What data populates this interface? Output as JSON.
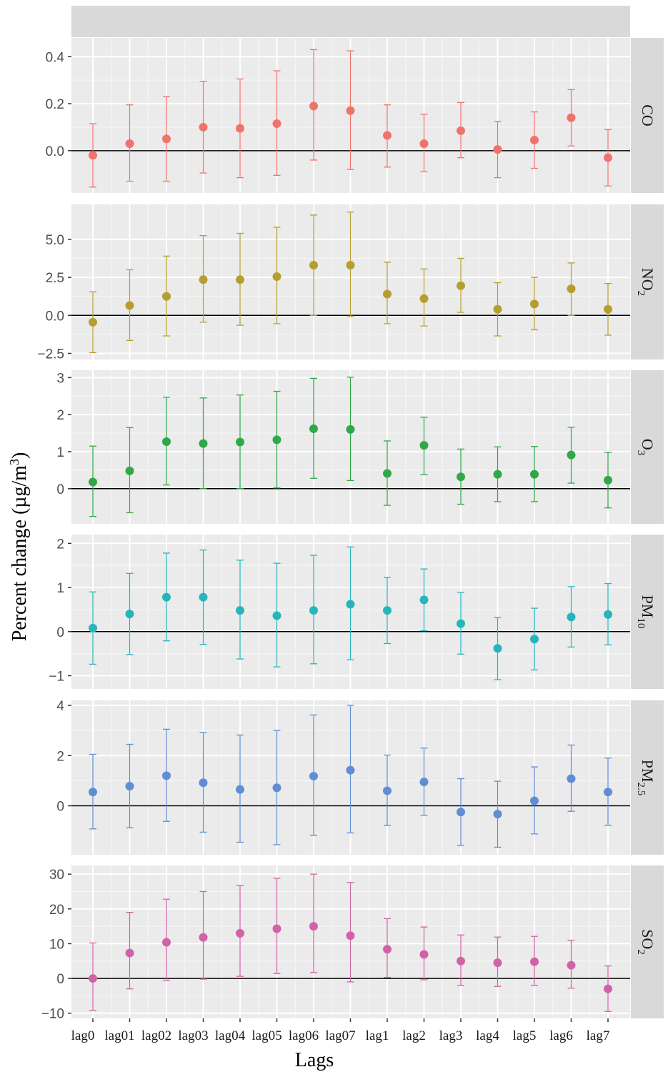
{
  "chart_data": {
    "type": "scatter",
    "subtype": "point-errorbar-faceted",
    "xlabel": "Lags",
    "ylabel": "Percent change (µg/m³)",
    "categories": [
      "lag0",
      "lag01",
      "lag02",
      "lag03",
      "lag04",
      "lag05",
      "lag06",
      "lag07",
      "lag1",
      "lag2",
      "lag3",
      "lag4",
      "lag5",
      "lag6",
      "lag7"
    ],
    "panels": [
      {
        "name": "CO",
        "label_main": "CO",
        "label_sub": "",
        "color": "#F0736B",
        "ylim": [
          -0.18,
          0.48
        ],
        "yticks": [
          0.0,
          0.2,
          0.4
        ],
        "ytick_labels": [
          "0.0",
          "0.2",
          "0.4"
        ],
        "estimate": [
          -0.02,
          0.03,
          0.05,
          0.1,
          0.095,
          0.115,
          0.19,
          0.17,
          0.065,
          0.03,
          0.085,
          0.005,
          0.045,
          0.14,
          -0.03
        ],
        "lower": [
          -0.155,
          -0.13,
          -0.13,
          -0.095,
          -0.115,
          -0.105,
          -0.04,
          -0.08,
          -0.07,
          -0.09,
          -0.03,
          -0.115,
          -0.075,
          0.02,
          -0.15
        ],
        "upper": [
          0.115,
          0.195,
          0.23,
          0.295,
          0.305,
          0.34,
          0.43,
          0.425,
          0.195,
          0.155,
          0.205,
          0.125,
          0.165,
          0.26,
          0.09
        ]
      },
      {
        "name": "NO2",
        "label_main": "NO",
        "label_sub": "2",
        "color": "#B59E2E",
        "ylim": [
          -2.9,
          7.3
        ],
        "yticks": [
          -2.5,
          0.0,
          2.5,
          5.0
        ],
        "ytick_labels": [
          "−2.5",
          "0.0",
          "2.5",
          "5.0"
        ],
        "estimate": [
          -0.45,
          0.65,
          1.25,
          2.35,
          2.35,
          2.55,
          3.3,
          3.3,
          1.4,
          1.1,
          1.95,
          0.4,
          0.75,
          1.75,
          0.4
        ],
        "lower": [
          -2.45,
          -1.65,
          -1.35,
          -0.45,
          -0.65,
          -0.55,
          0.0,
          -0.05,
          -0.55,
          -0.7,
          0.2,
          -1.35,
          -0.95,
          0.0,
          -1.3
        ],
        "upper": [
          1.55,
          3.0,
          3.9,
          5.25,
          5.4,
          5.8,
          6.6,
          6.8,
          3.5,
          3.05,
          3.75,
          2.15,
          2.5,
          3.45,
          2.1
        ]
      },
      {
        "name": "O3",
        "label_main": "O",
        "label_sub": "3",
        "color": "#30A849",
        "ylim": [
          -0.95,
          3.2
        ],
        "yticks": [
          0,
          1,
          2,
          3
        ],
        "ytick_labels": [
          "0",
          "1",
          "2",
          "3"
        ],
        "estimate": [
          0.18,
          0.48,
          1.27,
          1.22,
          1.26,
          1.32,
          1.62,
          1.6,
          0.41,
          1.17,
          0.32,
          0.39,
          0.39,
          0.91,
          0.23
        ],
        "lower": [
          -0.75,
          -0.65,
          0.1,
          0.0,
          0.0,
          0.02,
          0.28,
          0.22,
          -0.45,
          0.38,
          -0.42,
          -0.35,
          -0.35,
          0.15,
          -0.52
        ],
        "upper": [
          1.15,
          1.65,
          2.47,
          2.45,
          2.53,
          2.63,
          2.98,
          3.01,
          1.29,
          1.93,
          1.07,
          1.13,
          1.14,
          1.66,
          0.98
        ]
      },
      {
        "name": "PM10",
        "label_main": "PM",
        "label_sub": "10",
        "color": "#27B5BB",
        "ylim": [
          -1.3,
          2.2
        ],
        "yticks": [
          -1,
          0,
          1,
          2
        ],
        "ytick_labels": [
          "−1",
          "0",
          "1",
          "2"
        ],
        "estimate": [
          0.08,
          0.4,
          0.78,
          0.78,
          0.48,
          0.36,
          0.48,
          0.62,
          0.48,
          0.72,
          0.18,
          -0.38,
          -0.17,
          0.33,
          0.39
        ],
        "lower": [
          -0.74,
          -0.52,
          -0.21,
          -0.29,
          -0.62,
          -0.8,
          -0.73,
          -0.64,
          -0.27,
          0.02,
          -0.51,
          -1.09,
          -0.87,
          -0.35,
          -0.3
        ],
        "upper": [
          0.9,
          1.32,
          1.78,
          1.85,
          1.62,
          1.55,
          1.73,
          1.92,
          1.23,
          1.42,
          0.89,
          0.32,
          0.53,
          1.02,
          1.09
        ]
      },
      {
        "name": "PM2.5",
        "label_main": "PM",
        "label_sub": "2.5",
        "color": "#618DD3",
        "ylim": [
          -1.95,
          4.2
        ],
        "yticks": [
          0,
          2,
          4
        ],
        "ytick_labels": [
          "0",
          "2",
          "4"
        ],
        "estimate": [
          0.55,
          0.78,
          1.2,
          0.92,
          0.65,
          0.72,
          1.18,
          1.42,
          0.6,
          0.95,
          -0.25,
          -0.33,
          0.2,
          1.08,
          0.55
        ],
        "lower": [
          -0.92,
          -0.88,
          -0.62,
          -1.05,
          -1.45,
          -1.55,
          -1.18,
          -1.08,
          -0.78,
          -0.38,
          -1.58,
          -1.65,
          -1.12,
          -0.22,
          -0.78
        ],
        "upper": [
          2.05,
          2.45,
          3.05,
          2.92,
          2.82,
          3.0,
          3.62,
          4.0,
          2.02,
          2.3,
          1.08,
          0.98,
          1.55,
          2.42,
          1.9
        ]
      },
      {
        "name": "SO2",
        "label_main": "SO",
        "label_sub": "2",
        "color": "#D063A8",
        "ylim": [
          -11.5,
          32.5
        ],
        "yticks": [
          -10,
          0,
          10,
          20,
          30
        ],
        "ytick_labels": [
          "−10",
          "0",
          "10",
          "20",
          "30"
        ],
        "estimate": [
          0.0,
          7.3,
          10.4,
          11.8,
          13.0,
          14.3,
          15.0,
          12.3,
          8.4,
          6.9,
          5.0,
          4.5,
          4.8,
          3.8,
          -3.0
        ],
        "lower": [
          -9.2,
          -3.0,
          -0.6,
          -0.2,
          0.6,
          1.4,
          1.7,
          -1.0,
          0.3,
          -0.4,
          -2.0,
          -2.3,
          -2.0,
          -2.8,
          -9.5
        ],
        "upper": [
          10.2,
          19.0,
          22.8,
          25.0,
          26.8,
          28.8,
          30.0,
          27.6,
          17.2,
          14.8,
          12.5,
          11.9,
          12.1,
          11.0,
          3.6
        ]
      }
    ]
  }
}
